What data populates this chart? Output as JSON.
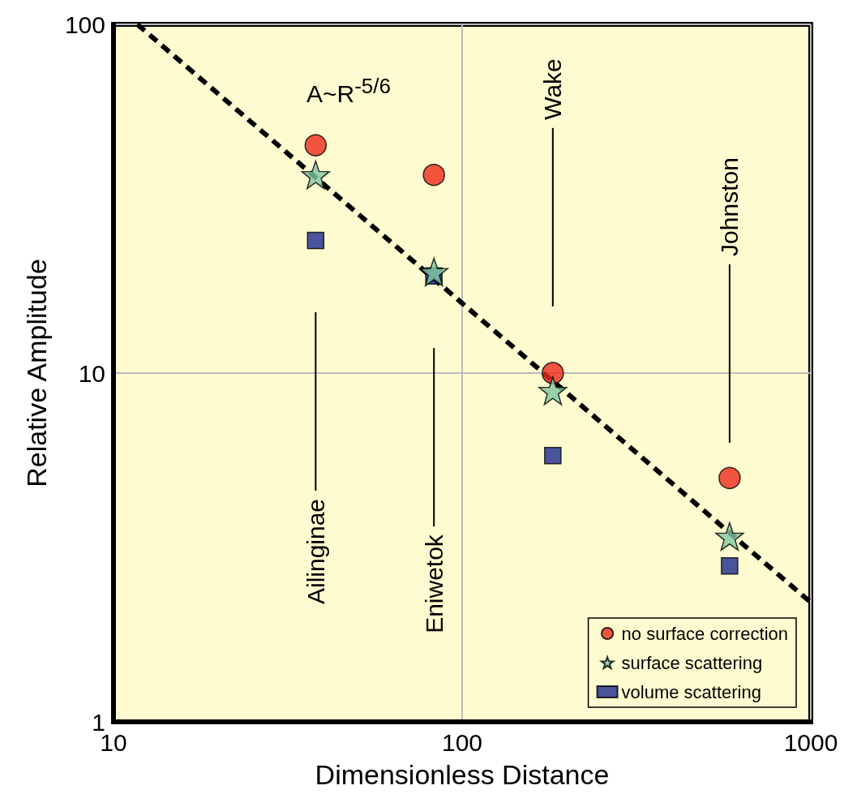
{
  "chart_data": {
    "type": "scatter",
    "xlabel": "Dimensionless Distance",
    "ylabel": "Relative Amplitude",
    "log": "xy",
    "xlim": [
      10,
      1000
    ],
    "ylim": [
      1,
      100
    ],
    "xticks": [
      10,
      100,
      1000
    ],
    "yticks": [
      1,
      10,
      100
    ],
    "grid": true,
    "legend": "bottom right",
    "x": [
      38,
      83,
      182,
      585
    ],
    "series": [
      {
        "name": "no surface correction",
        "color": "#ee2a1a",
        "marker": "circle",
        "values": [
          45,
          37,
          10,
          5.0
        ]
      },
      {
        "name": "surface scattering",
        "color": "#80c8a0",
        "marker": "star",
        "values": [
          37,
          19.5,
          8.9,
          3.4
        ]
      },
      {
        "name": "volume scattering",
        "color": "#1c2a8c",
        "marker": "square",
        "values": [
          24,
          19,
          5.8,
          2.8
        ]
      },
      {
        "type": "line",
        "color": "#000000",
        "marker": "none",
        "line_style": "dashed",
        "x": [
          11.7,
          1000
        ],
        "values": [
          100,
          2.2
        ]
      }
    ],
    "annotations": [
      "A~R$^{-5/6}$",
      "Ailinginae",
      "Eniwetok",
      "Wake",
      "Johnston"
    ]
  }
}
